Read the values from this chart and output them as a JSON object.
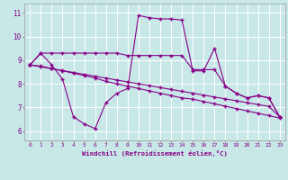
{
  "xlabel": "Windchill (Refroidissement éolien,°C)",
  "x_values": [
    0,
    1,
    2,
    3,
    4,
    5,
    6,
    7,
    8,
    9,
    10,
    11,
    12,
    13,
    14,
    15,
    16,
    17,
    18,
    19,
    20,
    21,
    22,
    23
  ],
  "line1": [
    8.8,
    9.3,
    9.3,
    9.3,
    9.3,
    9.3,
    9.3,
    9.3,
    9.3,
    9.2,
    9.2,
    9.2,
    9.2,
    9.2,
    9.2,
    8.6,
    8.6,
    8.6,
    7.9,
    7.6,
    7.4,
    7.5,
    7.4,
    6.6
  ],
  "line2": [
    8.8,
    9.3,
    8.8,
    8.2,
    6.6,
    6.3,
    6.1,
    7.2,
    7.6,
    7.8,
    10.9,
    10.8,
    10.75,
    10.75,
    10.7,
    8.55,
    8.55,
    9.5,
    7.9,
    7.6,
    7.4,
    7.5,
    7.4,
    6.6
  ],
  "line3": [
    8.8,
    8.75,
    8.65,
    8.55,
    8.45,
    8.35,
    8.25,
    8.1,
    8.0,
    7.9,
    7.8,
    7.7,
    7.6,
    7.5,
    7.4,
    7.35,
    7.25,
    7.15,
    7.05,
    6.95,
    6.85,
    6.75,
    6.65,
    6.55
  ],
  "line4": [
    8.8,
    8.72,
    8.64,
    8.56,
    8.48,
    8.4,
    8.32,
    8.24,
    8.16,
    8.08,
    8.0,
    7.92,
    7.84,
    7.76,
    7.68,
    7.6,
    7.52,
    7.44,
    7.36,
    7.28,
    7.2,
    7.12,
    7.04,
    6.6
  ],
  "line_color": "#880088",
  "bg_color": "#c8e8e8",
  "grid_color": "#ffffff",
  "ylim": [
    5.6,
    11.4
  ],
  "xlim": [
    -0.5,
    23.5
  ],
  "yticks": [
    6,
    7,
    8,
    9,
    10,
    11
  ]
}
